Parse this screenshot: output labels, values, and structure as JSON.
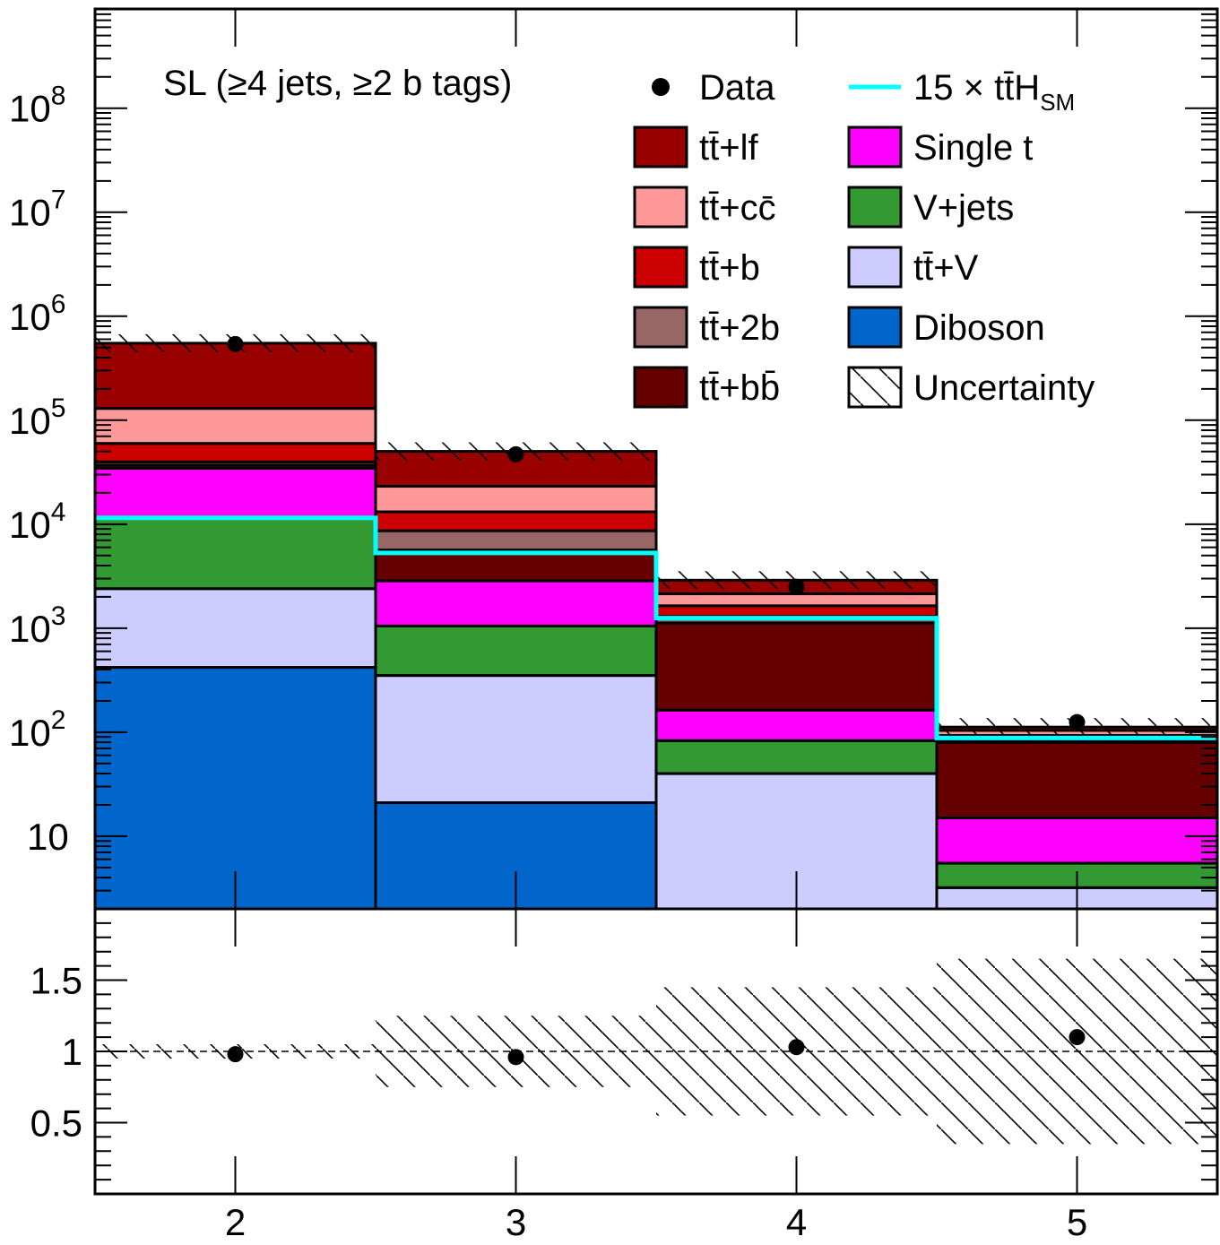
{
  "chart_data": {
    "type": "bar",
    "annotation": "SL (≥4 jets, ≥2 b tags)",
    "x": [
      2,
      3,
      4,
      5
    ],
    "x_edges": [
      1.5,
      2.5,
      3.5,
      4.5,
      5.5
    ],
    "xlim": [
      1.5,
      5.5
    ],
    "upper_panel": {
      "yscale": "log",
      "ylim": [
        2,
        900000000
      ],
      "tick_labels": [
        {
          "base": "10",
          "exp": "",
          "value": 10
        },
        {
          "base": "10",
          "exp": "2",
          "value": 100
        },
        {
          "base": "10",
          "exp": "3",
          "value": 1000
        },
        {
          "base": "10",
          "exp": "4",
          "value": 10000
        },
        {
          "base": "10",
          "exp": "5",
          "value": 100000
        },
        {
          "base": "10",
          "exp": "6",
          "value": 1000000
        },
        {
          "base": "10",
          "exp": "7",
          "value": 10000000
        },
        {
          "base": "10",
          "exp": "8",
          "value": 100000000
        }
      ],
      "stack_order": [
        "diboson",
        "ttv",
        "vjets",
        "singlet",
        "ttbb",
        "tt2b",
        "ttb",
        "ttcc",
        "ttlf"
      ],
      "series": [
        {
          "key": "diboson",
          "name": "Diboson",
          "color": "#0066cc",
          "values": [
            420,
            21,
            0,
            0
          ]
        },
        {
          "key": "ttv",
          "name": "tt̄+V",
          "color": "#ccccff",
          "values": [
            1980,
            330,
            40,
            3.2
          ]
        },
        {
          "key": "vjets",
          "name": "V+jets",
          "color": "#339933",
          "values": [
            9100,
            700,
            43,
            2.3
          ]
        },
        {
          "key": "singlet",
          "name": "Single t",
          "color": "#ff00ff",
          "values": [
            23000,
            1800,
            80,
            9.5
          ]
        },
        {
          "key": "ttbb",
          "name": "tt̄+bb̄",
          "color": "#660000",
          "values": [
            2500,
            2800,
            960,
            65
          ]
        },
        {
          "key": "tt2b",
          "name": "tt̄+2b",
          "color": "#996666",
          "values": [
            2800,
            3000,
            170,
            3
          ]
        },
        {
          "key": "ttb",
          "name": "tt̄+b",
          "color": "#cc0000",
          "values": [
            20000,
            4500,
            350,
            10
          ]
        },
        {
          "key": "ttcc",
          "name": "tt̄+cc̄",
          "color": "#ff9999",
          "values": [
            70000,
            10000,
            500,
            11
          ]
        },
        {
          "key": "ttlf",
          "name": "tt̄+lf",
          "color": "#990000",
          "values": [
            420000,
            27000,
            750,
            8
          ]
        }
      ],
      "signal": {
        "name": "15 × tt̄H",
        "subscript": "SM",
        "color": "#00ffff",
        "values": [
          11500,
          5300,
          1250,
          88
        ]
      },
      "data": {
        "name": "Data",
        "values": [
          540000,
          47000,
          2500,
          125
        ]
      }
    },
    "lower_panel": {
      "ylim": [
        0,
        2
      ],
      "tick_labels": [
        "0.5",
        "1",
        "1.5"
      ],
      "reference_line": 1,
      "data_mc_ratio": [
        0.98,
        0.96,
        1.03,
        1.1
      ],
      "uncertainty_band": [
        0.05,
        0.25,
        0.45,
        0.65
      ]
    },
    "x_tick_labels": [
      "2",
      "3",
      "4",
      "5"
    ],
    "legend": {
      "placement": "top-right",
      "entries_left": [
        "Data",
        "tt̄+lf",
        "tt̄+cc̄",
        "tt̄+b",
        "tt̄+2b",
        "tt̄+bb̄"
      ],
      "entries_right": [
        "15 × tt̄H",
        "Single t",
        "V+jets",
        "tt̄+V",
        "Diboson",
        "Uncertainty"
      ],
      "signal_subscript": "SM"
    }
  }
}
